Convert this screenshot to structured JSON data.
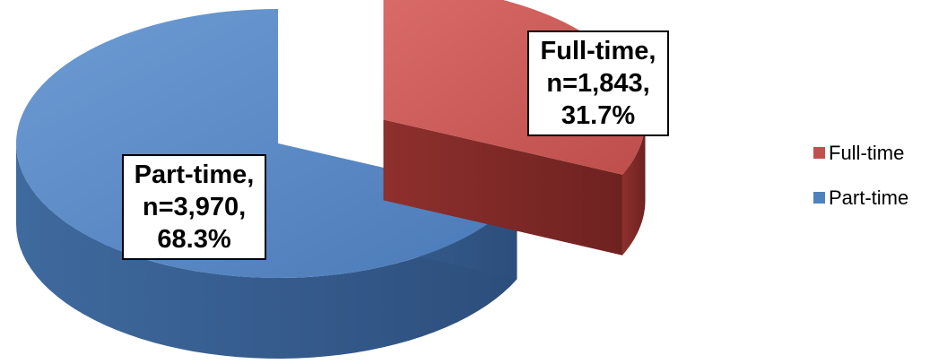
{
  "chart_data": {
    "type": "pie",
    "title": "",
    "categories": [
      "Full-time",
      "Part-time"
    ],
    "values": [
      1843,
      3970
    ],
    "percentages": [
      31.7,
      68.3
    ],
    "colors": [
      "#C0504D",
      "#4F81BD"
    ],
    "data_labels": [
      {
        "lines": [
          "Full-time,",
          "n=1,843,",
          "31.7%"
        ]
      },
      {
        "lines": [
          "Part-time,",
          "n=3,970,",
          "68.3%"
        ]
      }
    ],
    "legend": {
      "position": "right",
      "entries": [
        "Full-time",
        "Part-time"
      ]
    },
    "exploded": true,
    "three_d": true
  }
}
